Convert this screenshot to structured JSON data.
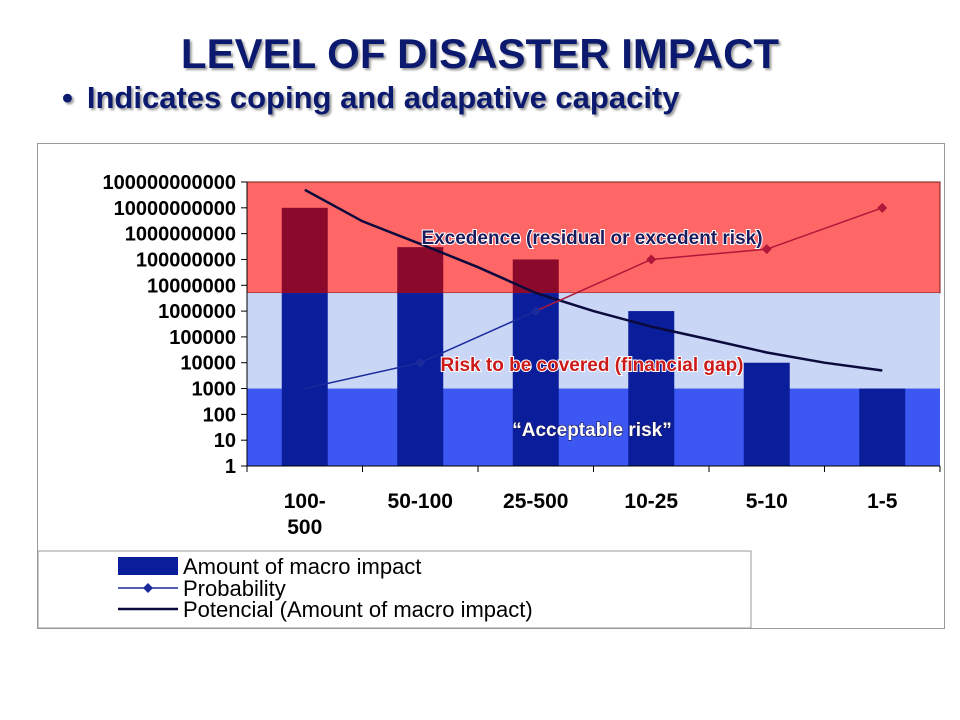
{
  "page": {
    "title": "LEVEL OF DISASTER IMPACT",
    "bullet": "Indicates coping and adapative capacity",
    "bullet_symbol": "•"
  },
  "colors": {
    "title": "#0b1a6e",
    "zone_excedence": "#ff6666",
    "zone_risk": "#c9d6f6",
    "zone_acceptable": "#3d57f2",
    "bar_lower": "#0a1e9c",
    "bar_upper": "#8b0a2c",
    "potencial_line": "#0a0a3c",
    "probability_blue": "#1b2a9b",
    "probability_red": "#b0183a",
    "zone_label_red": "#cc1a1a",
    "zone_label_dark": "#1a1a5c"
  },
  "chart_data": {
    "type": "bar",
    "y_scale": "log",
    "ylim": [
      1,
      100000000000
    ],
    "y_ticks": [
      "1",
      "10",
      "100",
      "1000",
      "10000",
      "100000",
      "1000000",
      "10000000",
      "100000000",
      "1000000000",
      "10000000000",
      "100000000000"
    ],
    "categories": [
      "100-\n500",
      "50-100",
      "25-500",
      "10-25",
      "5-10",
      "1-5"
    ],
    "series": [
      {
        "name": "Amount of macro impact",
        "kind": "bar",
        "values": [
          10000000000,
          300000000,
          100000000,
          1000000,
          10000,
          1000
        ]
      },
      {
        "name": "Probability",
        "kind": "line-marker",
        "values": [
          1000,
          10000,
          1000000,
          100000000,
          250000000,
          10000000000
        ]
      },
      {
        "name": "Potencial (Amount of macro impact)",
        "kind": "trendline",
        "points": [
          [
            0.0,
            50000000000
          ],
          [
            0.5,
            3000000000
          ],
          [
            1.0,
            400000000
          ],
          [
            1.5,
            50000000
          ],
          [
            2.0,
            5000000
          ],
          [
            2.5,
            1000000
          ],
          [
            3.0,
            250000
          ],
          [
            3.5,
            80000
          ],
          [
            4.0,
            25000
          ],
          [
            4.5,
            10000
          ],
          [
            5.0,
            5000
          ]
        ]
      }
    ],
    "zones": [
      {
        "label": "Excedence (residual or excedent risk)",
        "from": 5000000,
        "to": 100000000000
      },
      {
        "label": "Risk to be covered (financial gap)",
        "from": 1000,
        "to": 5000000
      },
      {
        "label": "“Acceptable risk”",
        "from": 1,
        "to": 1000
      }
    ],
    "legend_position": "bottom-left",
    "grid": false
  }
}
